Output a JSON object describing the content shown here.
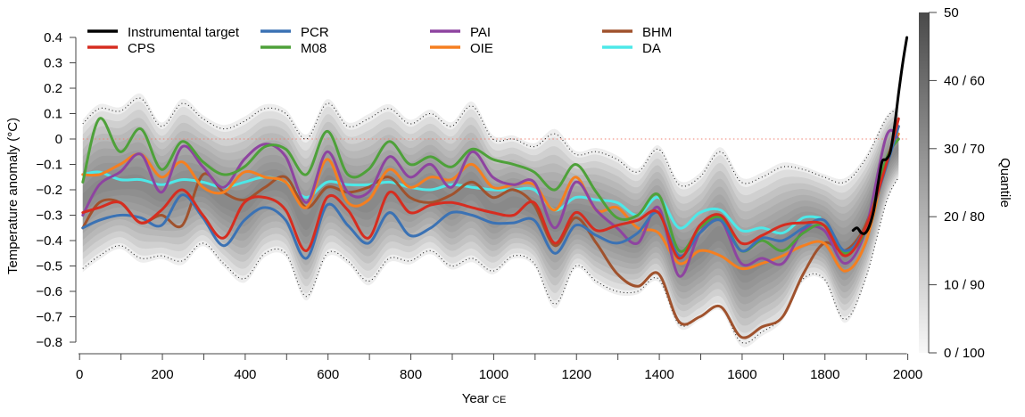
{
  "chart_data": {
    "type": "line",
    "xlabel": "Year",
    "xlabel_suffix": "CE",
    "ylabel": "Temperature anomaly (°C)",
    "xlim": [
      0,
      2000
    ],
    "ylim": [
      -0.8,
      0.4
    ],
    "x_ticks": [
      0,
      200,
      400,
      600,
      800,
      1000,
      1200,
      1400,
      1600,
      1800,
      2000
    ],
    "y_ticks": [
      0.4,
      0.3,
      0.2,
      0.1,
      0,
      -0.1,
      -0.2,
      -0.3,
      -0.4,
      -0.5,
      -0.6,
      -0.7,
      -0.8
    ],
    "y_tick_labels": [
      "0.4",
      "0.3",
      "0.2",
      "0.1",
      "0",
      "−0.1",
      "−0.2",
      "−0.3",
      "−0.4",
      "−0.5",
      "−0.6",
      "−0.7",
      "−0.8"
    ],
    "zero_line_color": "#f08070",
    "legend_position": "top",
    "colorbar": {
      "label": "Quantile",
      "ticks": [
        "50",
        "40 / 60",
        "30 / 70",
        "20 / 80",
        "10 / 90",
        "0 / 100"
      ],
      "tick_values": [
        50,
        40,
        30,
        20,
        10,
        0
      ]
    },
    "quantile_bounds": {
      "x": [
        10,
        50,
        100,
        150,
        200,
        250,
        300,
        350,
        400,
        450,
        500,
        550,
        600,
        650,
        700,
        750,
        800,
        850,
        900,
        950,
        1000,
        1050,
        1100,
        1150,
        1200,
        1250,
        1300,
        1350,
        1400,
        1450,
        1500,
        1550,
        1600,
        1650,
        1700,
        1750,
        1800,
        1850,
        1900,
        1950,
        1980
      ],
      "upper": [
        0.06,
        0.12,
        0.11,
        0.16,
        0.05,
        0.14,
        0.08,
        0.04,
        0.07,
        0.12,
        0.1,
        0.0,
        0.14,
        0.05,
        0.08,
        0.12,
        0.06,
        0.1,
        0.05,
        0.13,
        0.0,
        0.0,
        -0.03,
        0.02,
        -0.06,
        -0.05,
        -0.08,
        -0.13,
        -0.04,
        -0.18,
        -0.15,
        -0.05,
        -0.17,
        -0.15,
        -0.11,
        -0.12,
        -0.15,
        -0.17,
        -0.08,
        0.08,
        0.12
      ],
      "lower": [
        -0.51,
        -0.46,
        -0.42,
        -0.47,
        -0.46,
        -0.48,
        -0.41,
        -0.49,
        -0.55,
        -0.45,
        -0.45,
        -0.62,
        -0.45,
        -0.48,
        -0.56,
        -0.47,
        -0.48,
        -0.44,
        -0.5,
        -0.47,
        -0.52,
        -0.46,
        -0.49,
        -0.65,
        -0.5,
        -0.56,
        -0.6,
        -0.6,
        -0.55,
        -0.73,
        -0.7,
        -0.66,
        -0.8,
        -0.76,
        -0.7,
        -0.55,
        -0.55,
        -0.71,
        -0.55,
        -0.25,
        -0.15
      ]
    },
    "series": [
      {
        "name": "Instrumental target",
        "color": "#000000",
        "x": [
          1870,
          1880,
          1890,
          1900,
          1910,
          1920,
          1930,
          1940,
          1950,
          1960,
          1970,
          1980,
          1990,
          2000
        ],
        "y": [
          -0.36,
          -0.35,
          -0.37,
          -0.37,
          -0.34,
          -0.28,
          -0.18,
          -0.09,
          -0.08,
          -0.05,
          0.05,
          0.18,
          0.3,
          0.4
        ]
      },
      {
        "name": "CPS",
        "color": "#d62d20",
        "x": [
          10,
          50,
          100,
          150,
          200,
          250,
          300,
          350,
          400,
          450,
          500,
          550,
          600,
          650,
          700,
          750,
          800,
          850,
          900,
          950,
          1000,
          1050,
          1100,
          1150,
          1200,
          1250,
          1300,
          1350,
          1400,
          1450,
          1500,
          1550,
          1600,
          1650,
          1700,
          1750,
          1800,
          1850,
          1900,
          1950,
          1980
        ],
        "y": [
          -0.29,
          -0.27,
          -0.25,
          -0.33,
          -0.28,
          -0.2,
          -0.3,
          -0.39,
          -0.25,
          -0.23,
          -0.28,
          -0.44,
          -0.23,
          -0.28,
          -0.39,
          -0.21,
          -0.29,
          -0.26,
          -0.25,
          -0.27,
          -0.29,
          -0.3,
          -0.25,
          -0.41,
          -0.29,
          -0.36,
          -0.34,
          -0.32,
          -0.29,
          -0.47,
          -0.34,
          -0.3,
          -0.41,
          -0.38,
          -0.34,
          -0.33,
          -0.34,
          -0.46,
          -0.35,
          -0.1,
          0.08
        ]
      },
      {
        "name": "PCR",
        "color": "#3b72b4",
        "x": [
          10,
          50,
          100,
          150,
          200,
          250,
          300,
          350,
          400,
          450,
          500,
          550,
          600,
          650,
          700,
          750,
          800,
          850,
          900,
          950,
          1000,
          1050,
          1100,
          1150,
          1200,
          1250,
          1300,
          1350,
          1400,
          1450,
          1500,
          1550,
          1600,
          1650,
          1700,
          1750,
          1800,
          1850,
          1900,
          1950,
          1980
        ],
        "y": [
          -0.35,
          -0.32,
          -0.3,
          -0.31,
          -0.34,
          -0.22,
          -0.31,
          -0.42,
          -0.32,
          -0.27,
          -0.32,
          -0.47,
          -0.26,
          -0.34,
          -0.41,
          -0.29,
          -0.38,
          -0.35,
          -0.29,
          -0.3,
          -0.33,
          -0.33,
          -0.32,
          -0.45,
          -0.34,
          -0.38,
          -0.41,
          -0.37,
          -0.29,
          -0.46,
          -0.37,
          -0.32,
          -0.44,
          -0.39,
          -0.4,
          -0.35,
          -0.32,
          -0.44,
          -0.35,
          -0.11,
          0.05
        ]
      },
      {
        "name": "M08",
        "color": "#4ea13a",
        "x": [
          10,
          50,
          100,
          150,
          200,
          250,
          300,
          350,
          400,
          450,
          500,
          550,
          600,
          650,
          700,
          750,
          800,
          850,
          900,
          950,
          1000,
          1050,
          1100,
          1150,
          1200,
          1250,
          1300,
          1350,
          1400,
          1450,
          1500,
          1550,
          1600,
          1650,
          1700,
          1750,
          1800,
          1850,
          1900,
          1950,
          1980
        ],
        "y": [
          -0.17,
          0.08,
          -0.05,
          0.04,
          -0.12,
          -0.01,
          -0.09,
          -0.14,
          -0.11,
          -0.03,
          -0.04,
          -0.14,
          0.03,
          -0.14,
          -0.12,
          -0.01,
          -0.1,
          -0.07,
          -0.11,
          -0.04,
          -0.08,
          -0.1,
          -0.13,
          -0.2,
          -0.1,
          -0.21,
          -0.31,
          -0.3,
          -0.22,
          -0.44,
          -0.35,
          -0.31,
          -0.44,
          -0.4,
          -0.44,
          -0.37,
          -0.34,
          -0.45,
          -0.36,
          -0.08,
          0.0
        ]
      },
      {
        "name": "PAI",
        "color": "#8e44a0",
        "x": [
          10,
          50,
          100,
          150,
          200,
          250,
          300,
          350,
          400,
          450,
          500,
          550,
          600,
          650,
          700,
          750,
          800,
          850,
          900,
          950,
          1000,
          1050,
          1100,
          1150,
          1200,
          1250,
          1300,
          1350,
          1400,
          1450,
          1500,
          1550,
          1600,
          1650,
          1700,
          1750,
          1800,
          1850,
          1900,
          1950,
          1980
        ],
        "y": [
          -0.3,
          -0.18,
          -0.13,
          -0.06,
          -0.21,
          -0.03,
          -0.11,
          -0.19,
          -0.08,
          -0.02,
          -0.07,
          -0.25,
          -0.05,
          -0.21,
          -0.21,
          -0.07,
          -0.15,
          -0.1,
          -0.19,
          -0.05,
          -0.15,
          -0.18,
          -0.17,
          -0.35,
          -0.17,
          -0.28,
          -0.35,
          -0.41,
          -0.27,
          -0.54,
          -0.37,
          -0.32,
          -0.49,
          -0.47,
          -0.49,
          -0.36,
          -0.36,
          -0.49,
          -0.36,
          0.01,
          0.0
        ]
      },
      {
        "name": "OIE",
        "color": "#f57f20",
        "x": [
          10,
          50,
          100,
          150,
          200,
          250,
          300,
          350,
          400,
          450,
          500,
          550,
          600,
          650,
          700,
          750,
          800,
          850,
          900,
          950,
          1000,
          1050,
          1100,
          1150,
          1200,
          1250,
          1300,
          1350,
          1400,
          1450,
          1500,
          1550,
          1600,
          1650,
          1700,
          1750,
          1800,
          1850,
          1900,
          1950,
          1980
        ],
        "y": [
          -0.14,
          -0.14,
          -0.1,
          -0.06,
          -0.15,
          -0.09,
          -0.19,
          -0.21,
          -0.13,
          -0.15,
          -0.17,
          -0.27,
          -0.08,
          -0.25,
          -0.24,
          -0.12,
          -0.19,
          -0.15,
          -0.16,
          -0.1,
          -0.19,
          -0.18,
          -0.18,
          -0.28,
          -0.15,
          -0.28,
          -0.27,
          -0.35,
          -0.37,
          -0.49,
          -0.44,
          -0.46,
          -0.51,
          -0.49,
          -0.46,
          -0.42,
          -0.41,
          -0.52,
          -0.41,
          -0.09,
          0.02
        ]
      },
      {
        "name": "BHM",
        "color": "#a0522d",
        "x": [
          10,
          50,
          100,
          150,
          200,
          250,
          300,
          350,
          400,
          450,
          500,
          550,
          600,
          650,
          700,
          750,
          800,
          850,
          900,
          950,
          1000,
          1050,
          1100,
          1150,
          1200,
          1250,
          1300,
          1350,
          1400,
          1450,
          1500,
          1550,
          1600,
          1650,
          1700,
          1750,
          1800,
          1850,
          1900,
          1950,
          1980
        ],
        "y": [
          -0.35,
          -0.25,
          -0.25,
          -0.33,
          -0.3,
          -0.34,
          -0.14,
          -0.21,
          -0.24,
          -0.19,
          -0.15,
          -0.27,
          -0.19,
          -0.21,
          -0.19,
          -0.15,
          -0.23,
          -0.25,
          -0.22,
          -0.17,
          -0.23,
          -0.2,
          -0.26,
          -0.42,
          -0.31,
          -0.41,
          -0.53,
          -0.58,
          -0.53,
          -0.72,
          -0.7,
          -0.66,
          -0.78,
          -0.74,
          -0.7,
          -0.53,
          -0.41,
          -0.44,
          -0.34,
          -0.09,
          0.05
        ]
      },
      {
        "name": "DA",
        "color": "#4de8e8",
        "x": [
          10,
          50,
          100,
          150,
          200,
          250,
          300,
          350,
          400,
          450,
          500,
          550,
          600,
          650,
          700,
          750,
          800,
          850,
          900,
          950,
          1000,
          1050,
          1100,
          1150,
          1200,
          1250,
          1300,
          1350,
          1400,
          1450,
          1500,
          1550,
          1600,
          1650,
          1700,
          1750,
          1790
        ],
        "y": [
          -0.14,
          -0.13,
          -0.16,
          -0.16,
          -0.18,
          -0.16,
          -0.17,
          -0.19,
          -0.17,
          -0.15,
          -0.17,
          -0.23,
          -0.17,
          -0.18,
          -0.18,
          -0.17,
          -0.19,
          -0.2,
          -0.18,
          -0.19,
          -0.2,
          -0.2,
          -0.2,
          -0.28,
          -0.23,
          -0.24,
          -0.25,
          -0.3,
          -0.23,
          -0.35,
          -0.29,
          -0.28,
          -0.36,
          -0.35,
          -0.37,
          -0.31,
          -0.31
        ]
      }
    ]
  },
  "legend_order": [
    "Instrumental target",
    "CPS",
    "PCR",
    "M08",
    "PAI",
    "OIE",
    "BHM",
    "DA"
  ]
}
